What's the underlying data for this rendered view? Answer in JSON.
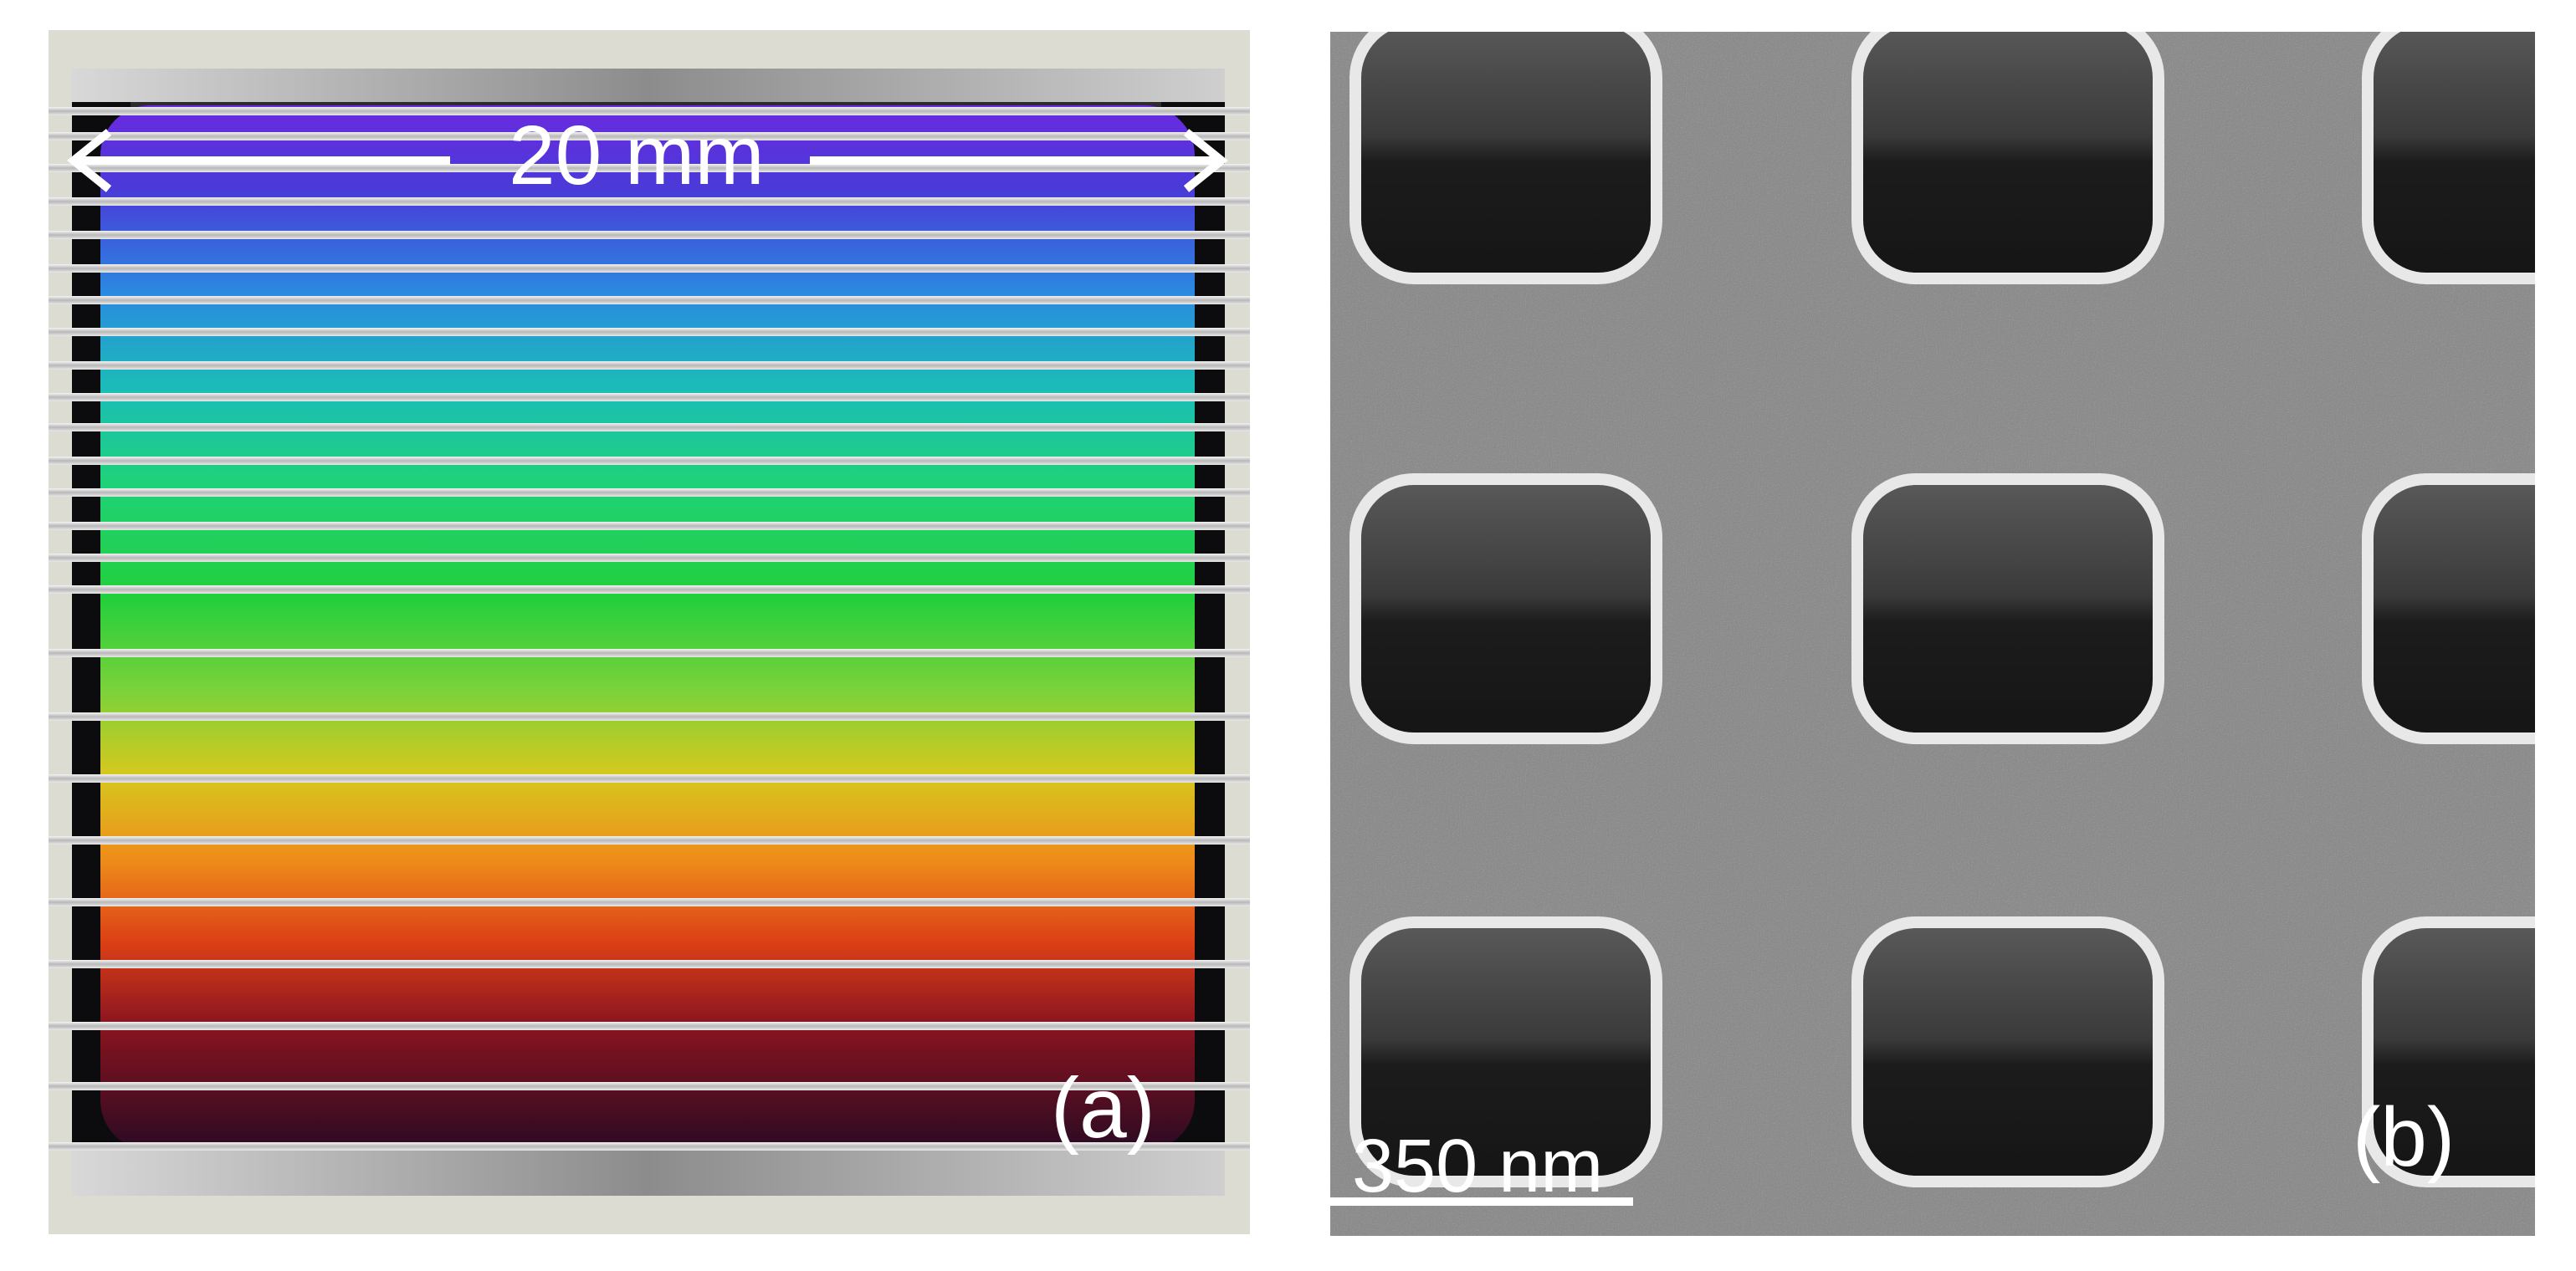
{
  "panel_a": {
    "label": "(a)",
    "dimension_label": "20 mm",
    "gradient_colors": [
      "#5a1fd8",
      "#2f6fe0",
      "#1bb6c4",
      "#1fd27a",
      "#2bd14a",
      "#7bd23a",
      "#d9c21e",
      "#ee8a1a",
      "#d93a16",
      "#7a0f1c",
      "#2a0a20"
    ],
    "arrow_color": "#ffffff"
  },
  "panel_b": {
    "label": "(b)",
    "scale_bar_label": "350 nm",
    "background_color": "#8a8a8a",
    "hole_color": "#1a1a1a",
    "rim_color": "#e6e6e6"
  }
}
